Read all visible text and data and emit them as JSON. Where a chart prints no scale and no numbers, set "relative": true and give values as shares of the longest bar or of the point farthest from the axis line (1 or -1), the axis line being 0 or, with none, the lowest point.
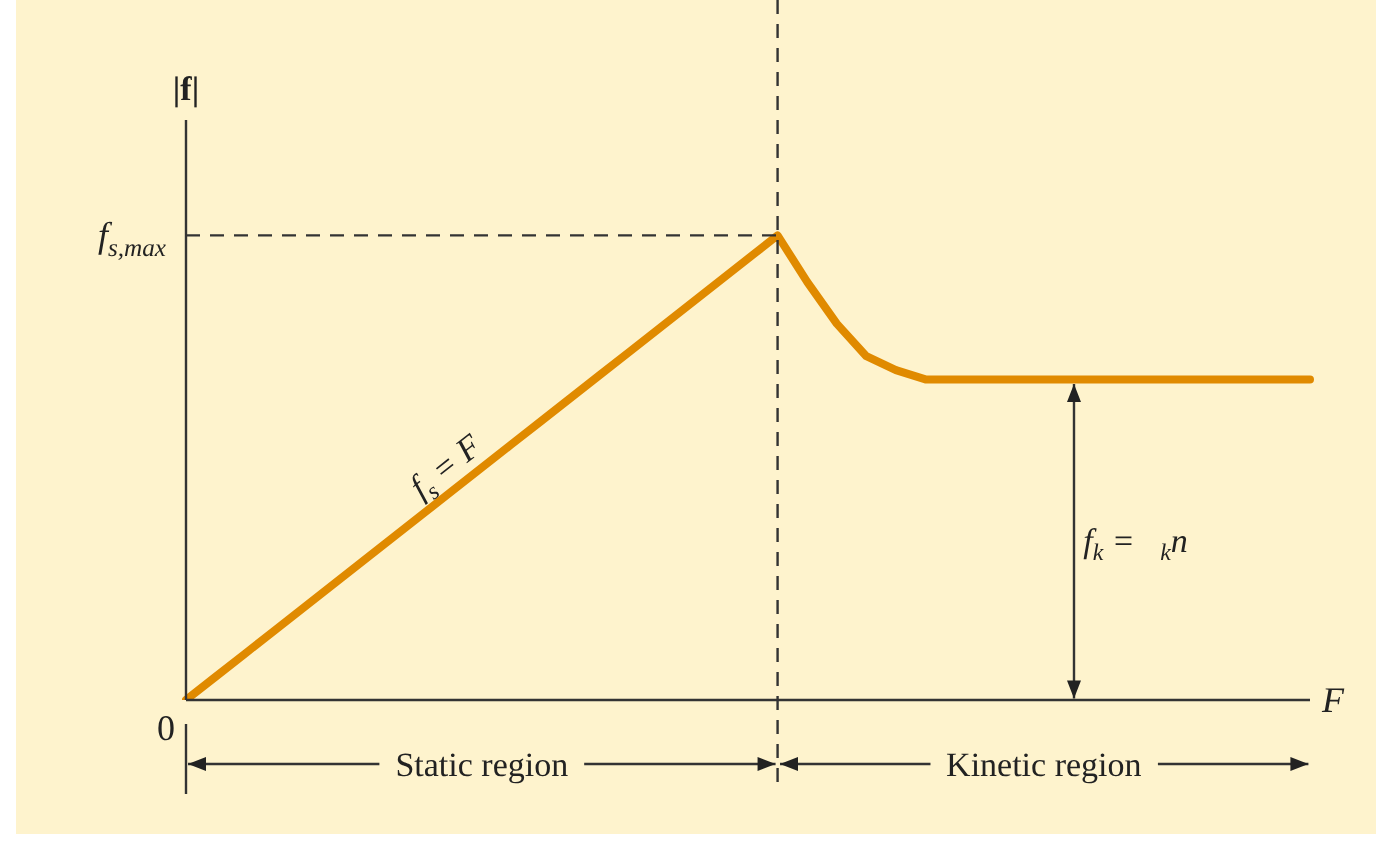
{
  "chart_data": {
    "type": "line",
    "relative": true,
    "ylabel": "|f|",
    "xlabel": "F",
    "categories": [
      null,
      null,
      null,
      null,
      null,
      null,
      null,
      null,
      null,
      null,
      null,
      null,
      null,
      null,
      null,
      null,
      null,
      null,
      null,
      null,
      null,
      null,
      null,
      null,
      null,
      null,
      null,
      null,
      null,
      null,
      null,
      null,
      null,
      null,
      null,
      null,
      null,
      null,
      null
    ],
    "series": [
      {
        "color": "#e08a00",
        "values": [
          0,
          0.05,
          0.1,
          0.15,
          0.2,
          0.25,
          0.3,
          0.35,
          0.4,
          0.45,
          0.5,
          0.55,
          0.6,
          0.65,
          0.7,
          0.75,
          0.8,
          0.85,
          0.9,
          0.95,
          1,
          0.9,
          0.81,
          0.74,
          0.71,
          0.69,
          0.69,
          0.69,
          0.69,
          0.69,
          0.69,
          0.69,
          0.69,
          0.69,
          0.69,
          0.69,
          0.69,
          0.69,
          0.69
        ]
      }
    ],
    "ref_lines": [
      {
        "axis": "y",
        "value": 1,
        "label": "f$_{s,max}$",
        "line_style": "dashed"
      }
    ],
    "annotations": [
      "0",
      "f$_{s}$ = F",
      "f$_{k}$ =   $_{k}$n",
      "Static region",
      "Kinetic region"
    ],
    "legend": false,
    "marker": "none",
    "line_style": "solid"
  }
}
